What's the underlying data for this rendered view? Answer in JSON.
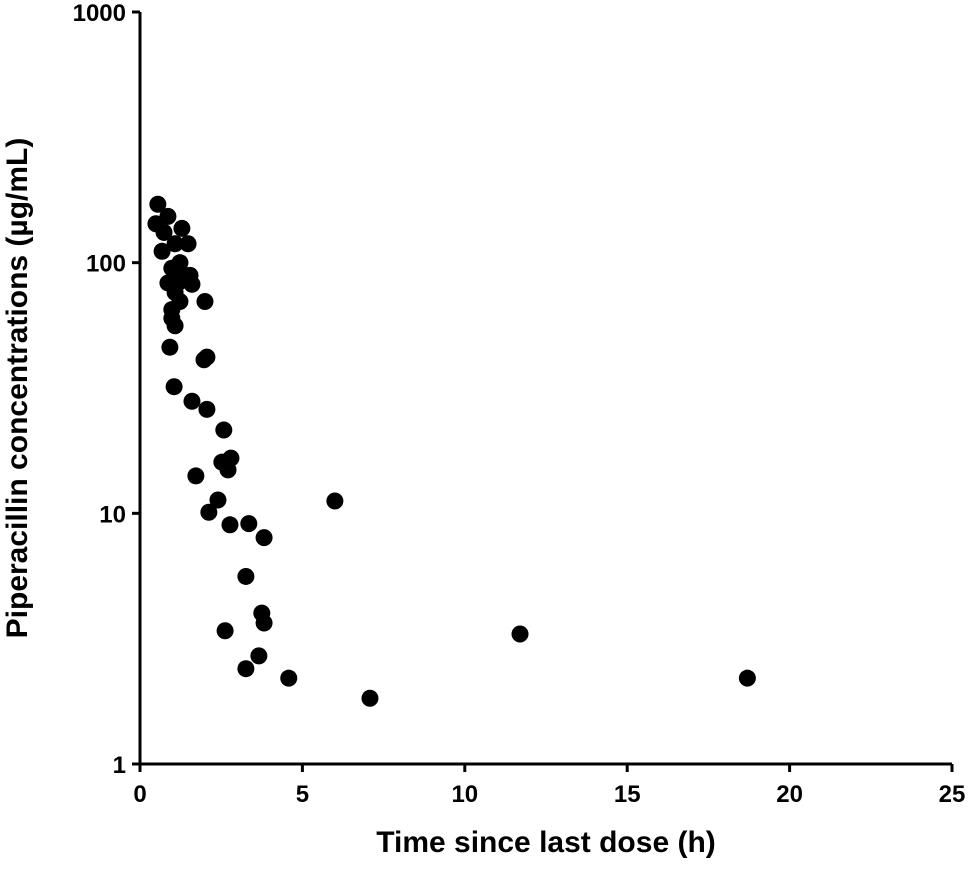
{
  "chart_data": {
    "type": "scatter",
    "xlabel": "Time since last dose (h)",
    "ylabel": "Piperacillin concentrations (µg/mL)",
    "xlim": [
      0,
      25
    ],
    "ylim": [
      1,
      1000
    ],
    "yscale": "log",
    "x_ticks": [
      "0",
      "5",
      "10",
      "15",
      "20",
      "25"
    ],
    "y_ticks": [
      "1",
      "10",
      "100",
      "1000"
    ],
    "grid": false,
    "marker_color": "#000000",
    "points": [
      [
        0.55,
        171
      ],
      [
        0.86,
        153
      ],
      [
        0.49,
        143
      ],
      [
        0.74,
        132
      ],
      [
        1.29,
        137
      ],
      [
        1.08,
        119
      ],
      [
        1.48,
        119
      ],
      [
        0.68,
        111
      ],
      [
        0.98,
        95
      ],
      [
        1.23,
        100
      ],
      [
        1.38,
        89
      ],
      [
        1.17,
        83
      ],
      [
        0.86,
        83
      ],
      [
        1.54,
        89
      ],
      [
        1.6,
        82
      ],
      [
        1.08,
        76
      ],
      [
        1.23,
        70
      ],
      [
        2.0,
        70
      ],
      [
        0.98,
        65
      ],
      [
        0.98,
        60
      ],
      [
        1.08,
        56
      ],
      [
        0.92,
        46
      ],
      [
        2.06,
        42
      ],
      [
        1.97,
        41
      ],
      [
        1.05,
        32
      ],
      [
        1.6,
        28
      ],
      [
        2.06,
        26
      ],
      [
        2.58,
        21.5
      ],
      [
        2.8,
        16.6
      ],
      [
        2.52,
        16
      ],
      [
        2.71,
        14.9
      ],
      [
        1.72,
        14.1
      ],
      [
        2.4,
        11.3
      ],
      [
        6.0,
        11.2
      ],
      [
        2.12,
        10.1
      ],
      [
        3.35,
        9.1
      ],
      [
        2.77,
        9.0
      ],
      [
        3.82,
        8.0
      ],
      [
        3.26,
        5.6
      ],
      [
        3.75,
        4.0
      ],
      [
        3.82,
        3.65
      ],
      [
        2.62,
        3.4
      ],
      [
        11.7,
        3.3
      ],
      [
        3.66,
        2.7
      ],
      [
        3.26,
        2.4
      ],
      [
        4.58,
        2.2
      ],
      [
        18.7,
        2.2
      ],
      [
        7.08,
        1.83
      ]
    ]
  }
}
